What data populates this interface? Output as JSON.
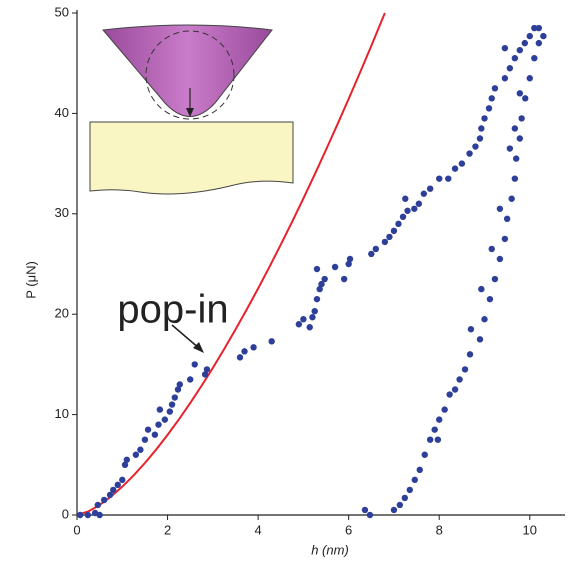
{
  "chart_data": {
    "type": "scatter",
    "x_label": "h (nm)",
    "y_label": "P (μN)",
    "annotation": "pop-in",
    "xlim": [
      0,
      10.8
    ],
    "ylim": [
      0,
      50
    ],
    "xticks": [
      0,
      2,
      4,
      6,
      8,
      10
    ],
    "yticks": [
      0,
      10,
      20,
      30,
      40,
      50
    ],
    "series": [
      {
        "type": "line",
        "color": "#e8212b",
        "x": [
          0,
          0.25,
          0.5,
          0.75,
          1,
          1.25,
          1.5,
          1.75,
          2,
          2.25,
          2.5,
          2.75,
          3,
          3.25,
          3.5,
          3.75,
          4,
          4.25,
          4.5,
          4.75,
          5,
          5.25,
          5.5,
          5.75,
          6,
          6.25,
          6.5,
          6.75,
          6.8
        ],
        "values": [
          0,
          0.35,
          1.0,
          1.83,
          2.82,
          3.94,
          5.18,
          6.53,
          7.98,
          9.52,
          11.15,
          12.86,
          14.65,
          16.52,
          18.47,
          20.48,
          22.56,
          24.71,
          26.92,
          29.19,
          31.53,
          33.92,
          36.38,
          38.89,
          41.45,
          44.06,
          46.73,
          49.46,
          50.0
        ]
      },
      {
        "type": "scatter",
        "color": "#2e3f99",
        "x": [
          0.07,
          0.24,
          0.4,
          0.5,
          0.46,
          0.6,
          0.73,
          0.8,
          0.9,
          1,
          1.06,
          1.1,
          1.3,
          1.4,
          1.5,
          1.57,
          1.72,
          1.8,
          1.83,
          1.94,
          2.05,
          2.1,
          2.16,
          2.23,
          2.27,
          2.5,
          2.6,
          2.83,
          2.87,
          3.6,
          3.7,
          3.9,
          4.3,
          4.9,
          5,
          5.14,
          5.2,
          5.25,
          5.3,
          5.36,
          5.4,
          5.47,
          5.3,
          5.7,
          5.9,
          6,
          6.03,
          6.5,
          6.6,
          6.8,
          6.9,
          7,
          7.1,
          7.2,
          7.3,
          7.25,
          7.45,
          7.55,
          7.66,
          7.8,
          8,
          8.2,
          8.35,
          8.5,
          8.67,
          8.8,
          8.9,
          8.93,
          9,
          9.1,
          9.16,
          9.23,
          9.45,
          9.56,
          9.67,
          9.78,
          9.89,
          10,
          10.1,
          10.2,
          10.3,
          10.2,
          10.1,
          10,
          9.9,
          9.82,
          9.78,
          9.7,
          9.67,
          9.6,
          9.5,
          9.45,
          9.34,
          9.23,
          9.12,
          9,
          8.9,
          8.68,
          8.57,
          8.45,
          8.23,
          8.12,
          8,
          7.9,
          7.8,
          7.68,
          7.57,
          7.46,
          7.35,
          7.24,
          7.13,
          7,
          6.47,
          6.36,
          9.45,
          9.78,
          9.67,
          9.56,
          9.34,
          9.16,
          8.93,
          8.7,
          8.35,
          7.97
        ],
        "values": [
          0,
          0,
          0.2,
          0,
          1,
          1.5,
          2,
          2.5,
          3,
          3.5,
          5,
          5.5,
          6,
          6.5,
          7.5,
          8.5,
          8,
          9,
          10.5,
          9.5,
          10.3,
          11,
          11.7,
          12.5,
          13,
          13.5,
          15,
          14,
          14.5,
          15.7,
          16.3,
          16.7,
          17.3,
          19,
          19.5,
          18.7,
          19.7,
          20.3,
          21.5,
          22.5,
          23,
          23.5,
          24.5,
          24.7,
          23.5,
          25,
          25.5,
          26,
          26.5,
          27.2,
          27.7,
          28.3,
          29,
          29.7,
          30.3,
          31.5,
          30.5,
          31,
          32,
          32.5,
          33.5,
          33.5,
          34.5,
          35,
          36,
          36.7,
          37.5,
          38.5,
          39.5,
          40.5,
          41.5,
          42.5,
          43.5,
          44.5,
          45.5,
          46.3,
          47,
          47.7,
          48.5,
          48.5,
          47.7,
          47,
          45.5,
          43.5,
          41.5,
          39.5,
          37.5,
          35.5,
          33.5,
          31.5,
          29.5,
          27.5,
          25.5,
          23.5,
          21.5,
          19.5,
          17.5,
          16,
          14.5,
          13.5,
          12,
          10.5,
          9.5,
          8.5,
          7.5,
          6,
          4.5,
          3.5,
          2.5,
          1.7,
          1,
          0.5,
          0,
          0.5,
          46.5,
          42,
          38.5,
          36.5,
          30.5,
          26.5,
          22.5,
          18.5,
          12.5,
          7.5
        ]
      }
    ]
  }
}
